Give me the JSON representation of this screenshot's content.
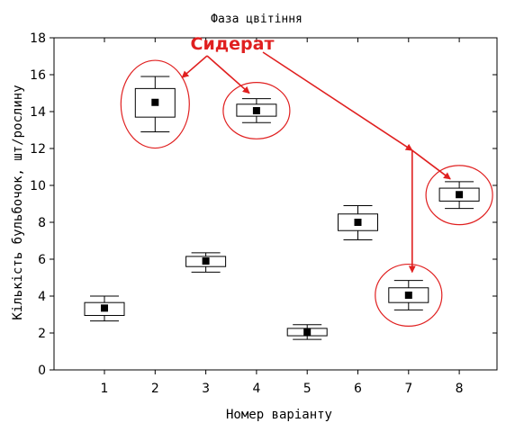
{
  "chart_data": {
    "type": "box",
    "title": "Фаза цвітіння",
    "xlabel": "Номер варіанту",
    "ylabel": "Кількість бульбочок, шт/рослину",
    "categories": [
      "1",
      "2",
      "3",
      "4",
      "5",
      "6",
      "7",
      "8"
    ],
    "ylim": [
      0,
      18
    ],
    "yticks": [
      0,
      2,
      4,
      6,
      8,
      10,
      12,
      14,
      16,
      18
    ],
    "grid": false,
    "series": [
      {
        "boxes": [
          {
            "x": "1",
            "mean": 3.35,
            "box_low": 2.95,
            "box_high": 3.65,
            "whisker_low": 2.65,
            "whisker_high": 4.0
          },
          {
            "x": "2",
            "mean": 14.5,
            "box_low": 13.7,
            "box_high": 15.25,
            "whisker_low": 12.9,
            "whisker_high": 15.9
          },
          {
            "x": "3",
            "mean": 5.9,
            "box_low": 5.6,
            "box_high": 6.15,
            "whisker_low": 5.3,
            "whisker_high": 6.35
          },
          {
            "x": "4",
            "mean": 14.05,
            "box_low": 13.75,
            "box_high": 14.4,
            "whisker_low": 13.4,
            "whisker_high": 14.7
          },
          {
            "x": "5",
            "mean": 2.05,
            "box_low": 1.85,
            "box_high": 2.25,
            "whisker_low": 1.65,
            "whisker_high": 2.45
          },
          {
            "x": "6",
            "mean": 8.0,
            "box_low": 7.55,
            "box_high": 8.45,
            "whisker_low": 7.05,
            "whisker_high": 8.9
          },
          {
            "x": "7",
            "mean": 4.05,
            "box_low": 3.65,
            "box_high": 4.45,
            "whisker_low": 3.25,
            "whisker_high": 4.85
          },
          {
            "x": "8",
            "mean": 9.5,
            "box_low": 9.15,
            "box_high": 9.85,
            "whisker_low": 8.75,
            "whisker_high": 10.2
          }
        ]
      }
    ],
    "annotation": {
      "text": "Сидерат",
      "color": "#e02020",
      "highlighted_categories": [
        "2",
        "4",
        "7",
        "8"
      ]
    }
  }
}
